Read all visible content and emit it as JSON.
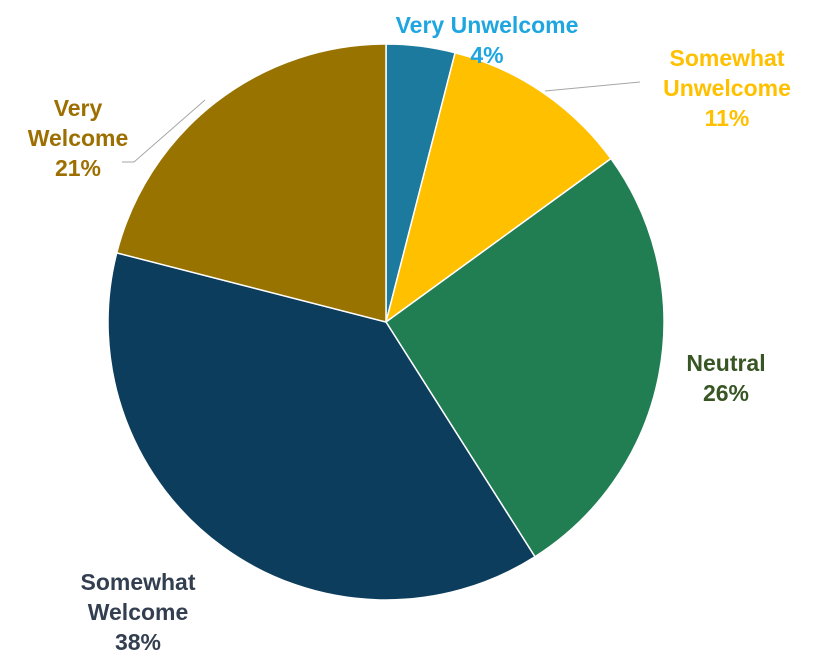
{
  "chart_data": {
    "type": "pie",
    "title": "",
    "start_angle_deg": 0,
    "direction": "clockwise",
    "slices": [
      {
        "label": "Very Unwelcome",
        "label_lines": [
          "Very Unwelcome"
        ],
        "value": 4,
        "value_label": "4%",
        "color": "#1b7a9e",
        "label_color": "#1fa6e0"
      },
      {
        "label": "Somewhat Unwelcome",
        "label_lines": [
          "Somewhat",
          "Unwelcome"
        ],
        "value": 11,
        "value_label": "11%",
        "color": "#ffc000",
        "label_color": "#ffc000"
      },
      {
        "label": "Neutral",
        "label_lines": [
          "Neutral"
        ],
        "value": 26,
        "value_label": "26%",
        "color": "#217d52",
        "label_color": "#375623"
      },
      {
        "label": "Somewhat Welcome",
        "label_lines": [
          "Somewhat",
          "Welcome"
        ],
        "value": 38,
        "value_label": "38%",
        "color": "#0c3d5c",
        "label_color": "#333f50"
      },
      {
        "label": "Very Welcome",
        "label_lines": [
          "Very",
          "Welcome"
        ],
        "value": 21,
        "value_label": "21%",
        "color": "#997300",
        "label_color": "#9c6f00"
      }
    ]
  }
}
